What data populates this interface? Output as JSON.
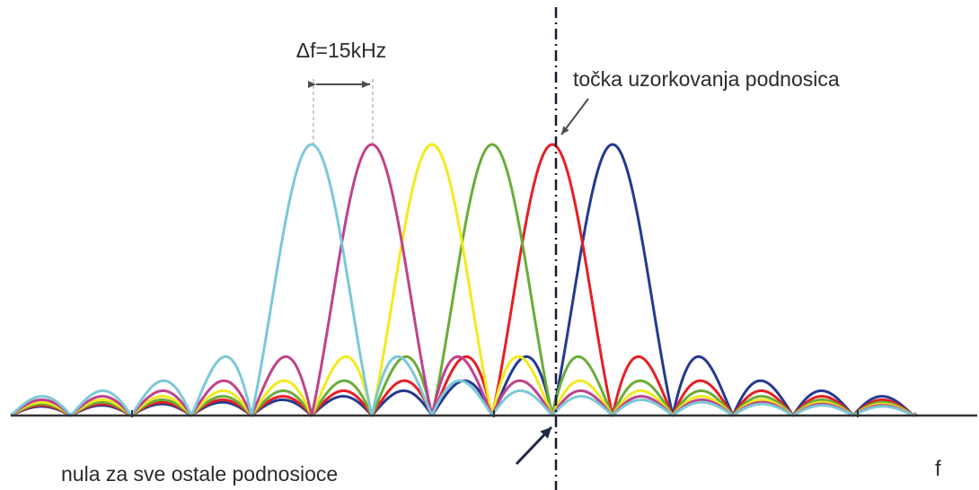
{
  "labels": {
    "delta_f": "Δf=15kHz",
    "sampling_point": "točka uzorkovanja podnosica",
    "null_point": "nula za sve ostale podnosioce",
    "axis": "f"
  },
  "subcarriers": [
    {
      "color": "#7cc8d8",
      "index": 0
    },
    {
      "color": "#c0428c",
      "index": 1
    },
    {
      "color": "#f2ea1c",
      "index": 2
    },
    {
      "color": "#6aac38",
      "index": 3
    },
    {
      "color": "#e51f26",
      "index": 4
    },
    {
      "color": "#243a8e",
      "index": 5
    }
  ],
  "colors": {
    "axis": "#333333",
    "guide": "#999999",
    "marker_line": "#1a1a2e",
    "arrow": "#4d4d4d",
    "dark_arrow": "#1f2a44"
  }
}
